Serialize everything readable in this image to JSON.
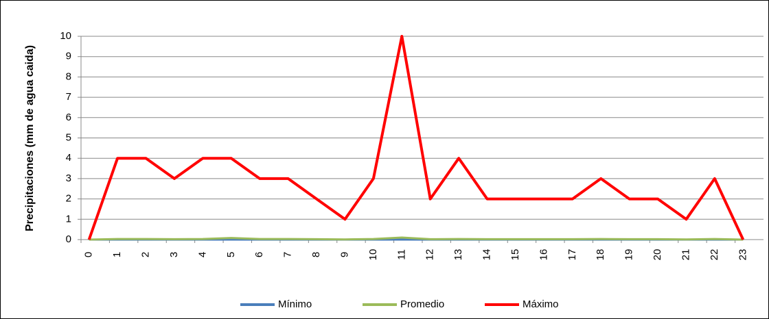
{
  "chart_data": {
    "type": "line",
    "y_label": "Precipitaciones (mm de agua caida)",
    "categories": [
      "0",
      "1",
      "2",
      "3",
      "4",
      "5",
      "6",
      "7",
      "8",
      "9",
      "10",
      "11",
      "12",
      "13",
      "14",
      "15",
      "16",
      "17",
      "18",
      "19",
      "20",
      "21",
      "22",
      "23"
    ],
    "series": [
      {
        "name": "Mínimo",
        "color": "#4a7ebb",
        "values": [
          0,
          0,
          0,
          0,
          0,
          0,
          0,
          0,
          0,
          0,
          0,
          0,
          0,
          0,
          0,
          0,
          0,
          0,
          0,
          0,
          0,
          0,
          0,
          0
        ]
      },
      {
        "name": "Promedio",
        "color": "#9bbb59",
        "values": [
          0,
          0.03,
          0.03,
          0.02,
          0.03,
          0.08,
          0.03,
          0.03,
          0.02,
          0.01,
          0.03,
          0.1,
          0.02,
          0.03,
          0.02,
          0.02,
          0.02,
          0.02,
          0.03,
          0.02,
          0.02,
          0.01,
          0.03,
          0
        ]
      },
      {
        "name": "Máximo",
        "color": "#ff0000",
        "values": [
          0,
          4,
          4,
          3,
          4,
          4,
          3,
          3,
          2,
          1,
          3,
          10,
          2,
          4,
          2,
          2,
          2,
          2,
          3,
          2,
          2,
          1,
          3,
          0
        ]
      }
    ],
    "ylim": [
      0,
      10
    ],
    "yticks": [
      0,
      1,
      2,
      3,
      4,
      5,
      6,
      7,
      8,
      9,
      10
    ],
    "grid": true,
    "legend": "bottom"
  }
}
